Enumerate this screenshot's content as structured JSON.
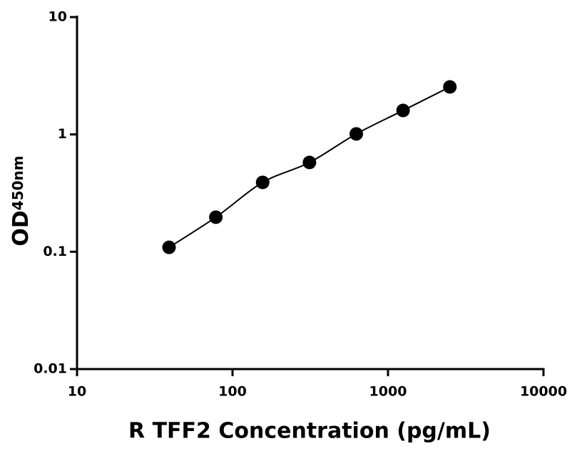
{
  "chart_data": {
    "type": "scatter",
    "x_label": "R TFF2 Concentration (pg/mL)",
    "y_label": "OD",
    "y_label_sub": "450nm",
    "x": [
      39.06,
      78.13,
      156.25,
      312.5,
      625,
      1250,
      2500
    ],
    "series": [
      {
        "color": "#000000",
        "values": [
          0.109,
          0.197,
          0.39,
          0.577,
          1.01,
          1.6,
          2.54
        ]
      }
    ],
    "xlim": [
      10,
      10000
    ],
    "ylim": [
      0.01,
      10
    ],
    "xticks": [
      10,
      100,
      1000,
      10000
    ],
    "yticks": [
      0.01,
      0.1,
      1,
      10
    ],
    "xscale": "log",
    "yscale": "log",
    "fit_line": true
  }
}
